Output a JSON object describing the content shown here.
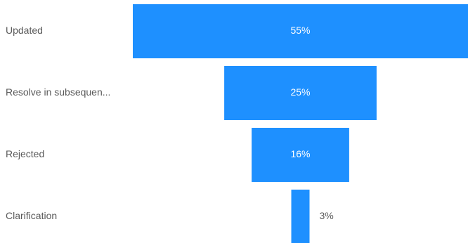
{
  "chart_data": {
    "type": "bar",
    "subtype": "funnel",
    "categories": [
      "Updated",
      "Resolve in subsequen...",
      "Rejected",
      "Clarification"
    ],
    "values": [
      55,
      25,
      16,
      3
    ],
    "value_labels": [
      "55%",
      "25%",
      "16%",
      "3%"
    ],
    "title": "",
    "xlabel": "",
    "ylabel": "",
    "legend": "none",
    "grid": false
  },
  "colors": {
    "bar": "#1E90FF",
    "label_text": "#5a5a5a",
    "inside_value_text": "#ffffff",
    "outside_value_text": "#5a5a5a"
  }
}
